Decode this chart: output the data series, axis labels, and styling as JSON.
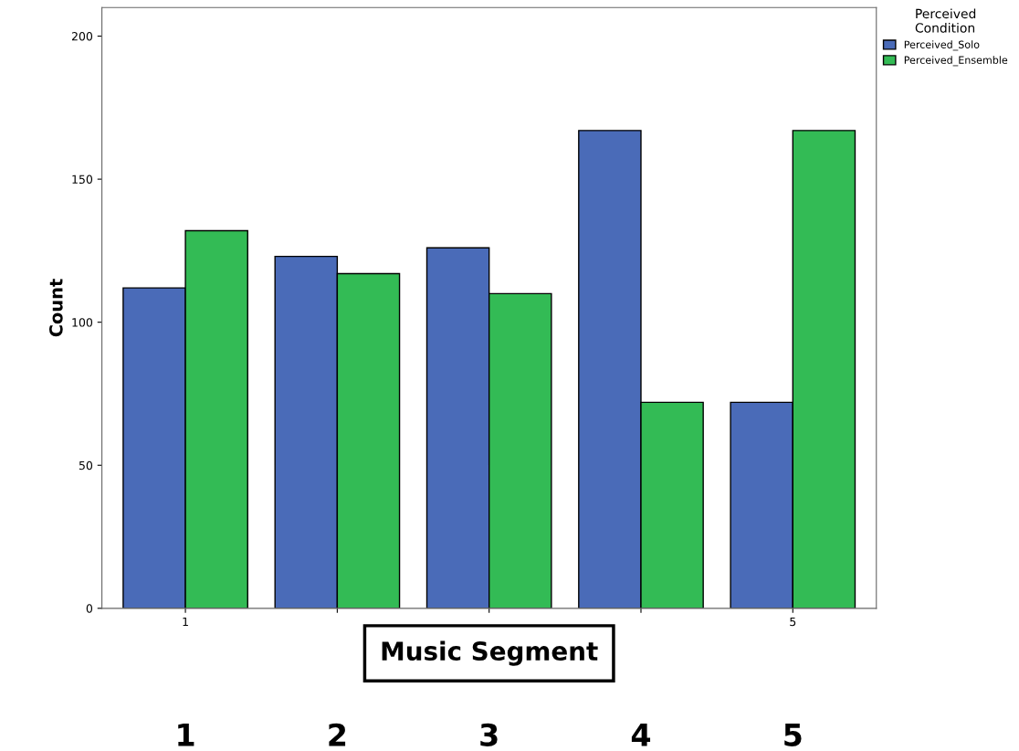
{
  "chart_data": {
    "type": "bar",
    "categories": [
      "1",
      null,
      null,
      null,
      "5"
    ],
    "xlabel": "Music Segment",
    "ylabel": "Count",
    "legend_title": "Perceived\nCondition",
    "series": [
      {
        "name": "Perceived_Solo",
        "color": "#4a6bb8",
        "values": [
          112,
          123,
          126,
          167,
          72
        ]
      },
      {
        "name": "Perceived_Ensemble",
        "color": "#33bb55",
        "values": [
          132,
          117,
          110,
          72,
          167
        ]
      }
    ],
    "ylim": [
      0,
      210
    ],
    "yticks": [
      0,
      50,
      100,
      150,
      200
    ],
    "grid": false,
    "legend": "top right",
    "annotations": [
      "1",
      "2",
      "3",
      "4",
      "5"
    ]
  }
}
